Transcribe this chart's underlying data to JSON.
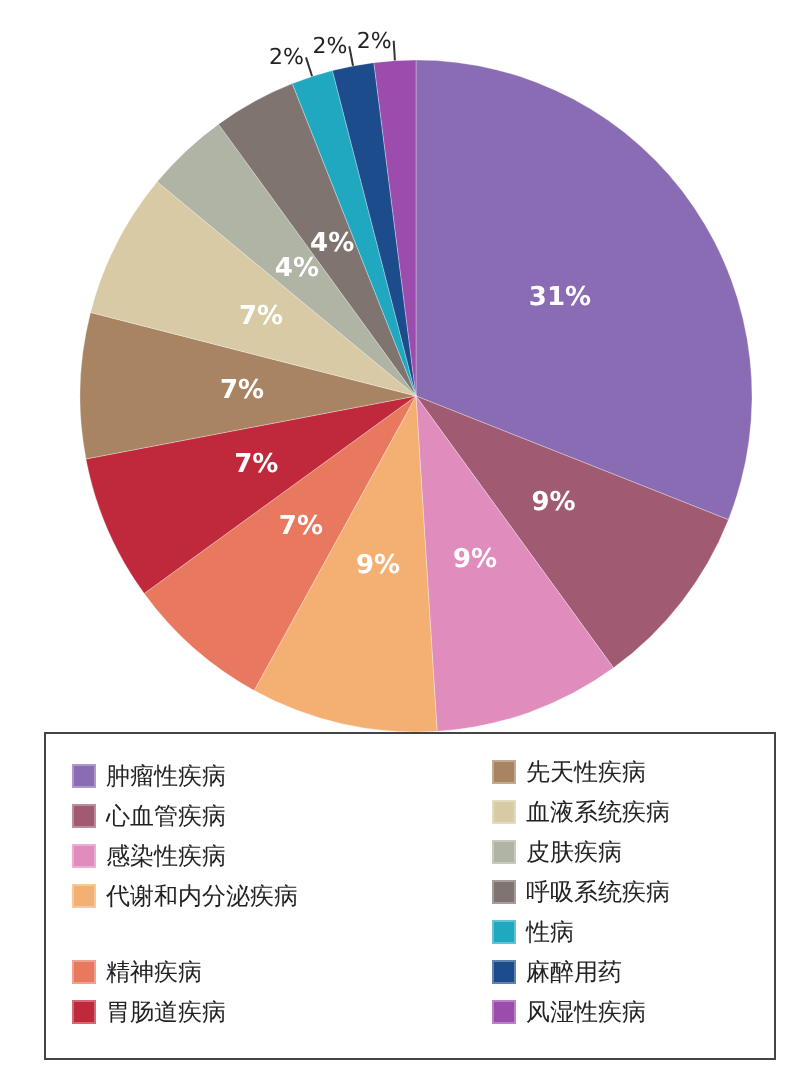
{
  "chart_data": {
    "type": "pie",
    "categories": [
      "肿瘤性疾病",
      "心血管疾病",
      "感染性疾病",
      "代谢和内分泌疾病",
      "精神疾病",
      "胃肠道疾病",
      "先天性疾病",
      "血液系统疾病",
      "皮肤疾病",
      "呼吸系统疾病",
      "性病",
      "麻醉用药",
      "风湿性疾病"
    ],
    "values": [
      31,
      9,
      9,
      9,
      7,
      7,
      7,
      7,
      4,
      4,
      2,
      2,
      2
    ],
    "value_labels": [
      "31%",
      "9%",
      "9%",
      "9%",
      "7%",
      "7%",
      "7%",
      "7%",
      "4%",
      "4%",
      "2%",
      "2%",
      "2%"
    ],
    "colors": [
      "#8a6cb4",
      "#a05a72",
      "#e08cbc",
      "#f4b072",
      "#e8785e",
      "#c0283c",
      "#a88462",
      "#d8caa4",
      "#b0b4a4",
      "#807470",
      "#20a8c0",
      "#1c4c8c",
      "#9c4cac"
    ],
    "legend": "bottom"
  }
}
